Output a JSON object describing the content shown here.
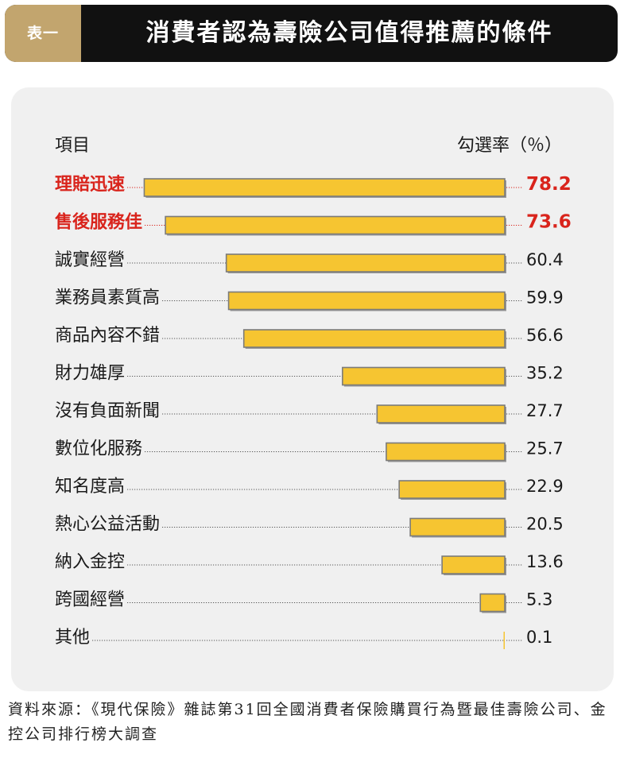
{
  "header": {
    "tag": "表一",
    "title": "消費者認為壽險公司值得推薦的條件"
  },
  "colors": {
    "bar_fill": "#f6c531",
    "bar_border": "#7b7b7b",
    "highlight_text": "#d9241c",
    "normal_text": "#1a1a1a",
    "panel_bg": "#f0f0f0",
    "header_bg": "#111111",
    "tag_bg": "#c2a56e"
  },
  "chart_data": {
    "type": "bar",
    "orientation": "horizontal",
    "column_header_item": "項目",
    "column_header_value": "勾選率（％）",
    "categories": [
      "理賠迅速",
      "售後服務佳",
      "誠實經營",
      "業務員素質高",
      "商品內容不錯",
      "財力雄厚",
      "沒有負面新聞",
      "數位化服務",
      "知名度高",
      "熱心公益活動",
      "納入金控",
      "跨國經營",
      "其他"
    ],
    "values": [
      78.2,
      73.6,
      60.4,
      59.9,
      56.6,
      35.2,
      27.7,
      25.7,
      22.9,
      20.5,
      13.6,
      5.3,
      0.1
    ],
    "value_labels": [
      "78.2",
      "73.6",
      "60.4",
      "59.9",
      "56.6",
      "35.2",
      "27.7",
      "25.7",
      "22.9",
      "20.5",
      "13.6",
      "5.3",
      "0.1"
    ],
    "highlighted": [
      true,
      true,
      false,
      false,
      false,
      false,
      false,
      false,
      false,
      false,
      false,
      false,
      false
    ],
    "xlim": [
      0,
      100
    ],
    "grid": false,
    "legend": "none"
  },
  "source_text": "資料來源：《現代保險》雜誌第31回全國消費者保險購買行為暨最佳壽險公司、金控公司排行榜大調查"
}
